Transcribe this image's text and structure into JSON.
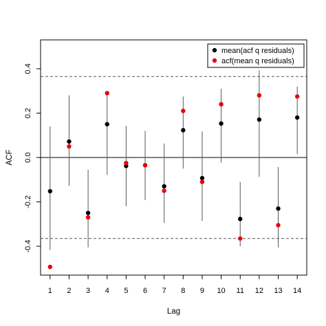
{
  "chart_data": {
    "type": "scatter",
    "title": "",
    "xlabel": "Lag",
    "ylabel": "ACF",
    "x": [
      1,
      2,
      3,
      4,
      5,
      6,
      7,
      8,
      9,
      10,
      11,
      12,
      13,
      14
    ],
    "xlim": [
      0.5,
      14.5
    ],
    "ylim": [
      -0.53,
      0.53
    ],
    "xticks": [
      "1",
      "2",
      "3",
      "4",
      "5",
      "6",
      "7",
      "8",
      "9",
      "10",
      "11",
      "12",
      "13",
      "14"
    ],
    "yticks": [
      -0.4,
      -0.2,
      0.0,
      0.2,
      0.4
    ],
    "ytick_labels": [
      "-0.4",
      "-0.2",
      "0.0",
      "0.2",
      "0.4"
    ],
    "grid": false,
    "legend_position": "top-right",
    "zero_line": 0.0,
    "confidence_band": [
      -0.365,
      0.365
    ],
    "series": [
      {
        "name": "mean(acf q residuals)",
        "color": "#000000",
        "values": [
          -0.152,
          0.072,
          -0.25,
          0.15,
          -0.038,
          -0.035,
          -0.13,
          0.123,
          -0.093,
          0.153,
          -0.277,
          0.171,
          -0.23,
          0.18
        ],
        "error_low": [
          -0.417,
          -0.127,
          -0.405,
          -0.078,
          -0.22,
          -0.192,
          -0.295,
          -0.05,
          -0.285,
          -0.023,
          -0.4,
          -0.087,
          -0.405,
          0.015
        ],
        "error_high": [
          0.14,
          0.28,
          -0.055,
          0.3,
          0.143,
          0.12,
          0.063,
          0.275,
          0.117,
          0.31,
          -0.11,
          0.393,
          -0.043,
          0.32
        ]
      },
      {
        "name": "acf(mean q residuals)",
        "color": "#e8000b",
        "values": [
          -0.493,
          0.05,
          -0.27,
          0.29,
          -0.025,
          -0.035,
          -0.15,
          0.21,
          -0.11,
          0.24,
          -0.365,
          0.28,
          -0.305,
          0.275
        ]
      }
    ]
  }
}
